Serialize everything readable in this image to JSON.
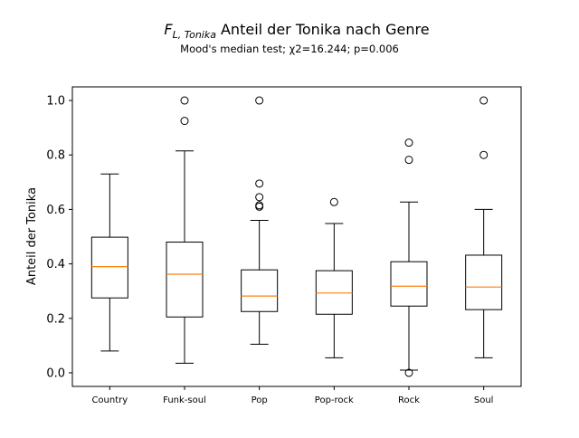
{
  "chart_data": {
    "type": "boxplot",
    "title_math": "F",
    "title_math_subscript": "L, Tonika",
    "title": "Anteil der Tonika nach Genre",
    "subtitle": "Mood's median test; χ2=16.244; p=0.006",
    "xlabel": "",
    "ylabel": "Anteil der Tonika",
    "ylim": [
      -0.05,
      1.05
    ],
    "yticks": [
      "0.0",
      "0.2",
      "0.4",
      "0.6",
      "0.8",
      "1.0"
    ],
    "ytick_values": [
      0.0,
      0.2,
      0.4,
      0.6,
      0.8,
      1.0
    ],
    "categories": [
      "Country",
      "Funk-soul",
      "Pop",
      "Pop-rock",
      "Rock",
      "Soul"
    ],
    "grid": false,
    "colors": {
      "box": "#000000",
      "median": "#ff7f0e",
      "outlier": "#000000"
    },
    "boxes": [
      {
        "name": "Country",
        "whisker_low": 0.08,
        "q1": 0.275,
        "median": 0.39,
        "q3": 0.498,
        "whisker_high": 0.73,
        "outliers": []
      },
      {
        "name": "Funk-soul",
        "whisker_low": 0.035,
        "q1": 0.205,
        "median": 0.362,
        "q3": 0.48,
        "whisker_high": 0.815,
        "outliers": [
          0.925,
          1.0
        ]
      },
      {
        "name": "Pop",
        "whisker_low": 0.105,
        "q1": 0.225,
        "median": 0.282,
        "q3": 0.378,
        "whisker_high": 0.56,
        "outliers": [
          0.61,
          0.615,
          0.645,
          0.695,
          1.0
        ]
      },
      {
        "name": "Pop-rock",
        "whisker_low": 0.055,
        "q1": 0.215,
        "median": 0.293,
        "q3": 0.375,
        "whisker_high": 0.548,
        "outliers": [
          0.627
        ]
      },
      {
        "name": "Rock",
        "whisker_low": 0.01,
        "q1": 0.245,
        "median": 0.318,
        "q3": 0.408,
        "whisker_high": 0.627,
        "outliers": [
          0.0,
          0.782,
          0.845
        ]
      },
      {
        "name": "Soul",
        "whisker_low": 0.055,
        "q1": 0.232,
        "median": 0.315,
        "q3": 0.432,
        "whisker_high": 0.6,
        "outliers": [
          0.8,
          1.0
        ]
      }
    ]
  }
}
